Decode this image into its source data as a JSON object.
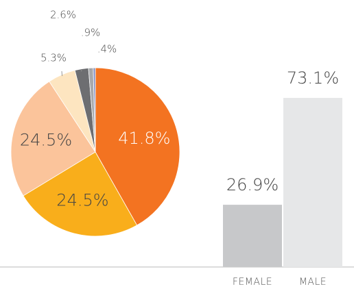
{
  "chart_data": [
    {
      "type": "pie",
      "values": [
        41.8,
        24.5,
        24.5,
        5.3,
        2.6,
        0.9,
        0.4
      ],
      "value_labels": [
        "41.8%",
        "24.5%",
        "24.5%",
        "5.3%",
        "2.6%",
        ".9%",
        ".4%"
      ],
      "colors": [
        "#f37321",
        "#f9ae1b",
        "#fbc49b",
        "#fde5c0",
        "#6d6e71",
        "#a7a9ac",
        "#7f8fc8"
      ]
    },
    {
      "type": "bar",
      "categories": [
        "FEMALE",
        "MALE"
      ],
      "values": [
        26.9,
        73.1
      ],
      "value_labels": [
        "26.9%",
        "73.1%"
      ],
      "colors": [
        "#c7c8ca",
        "#e6e7e8"
      ]
    }
  ]
}
